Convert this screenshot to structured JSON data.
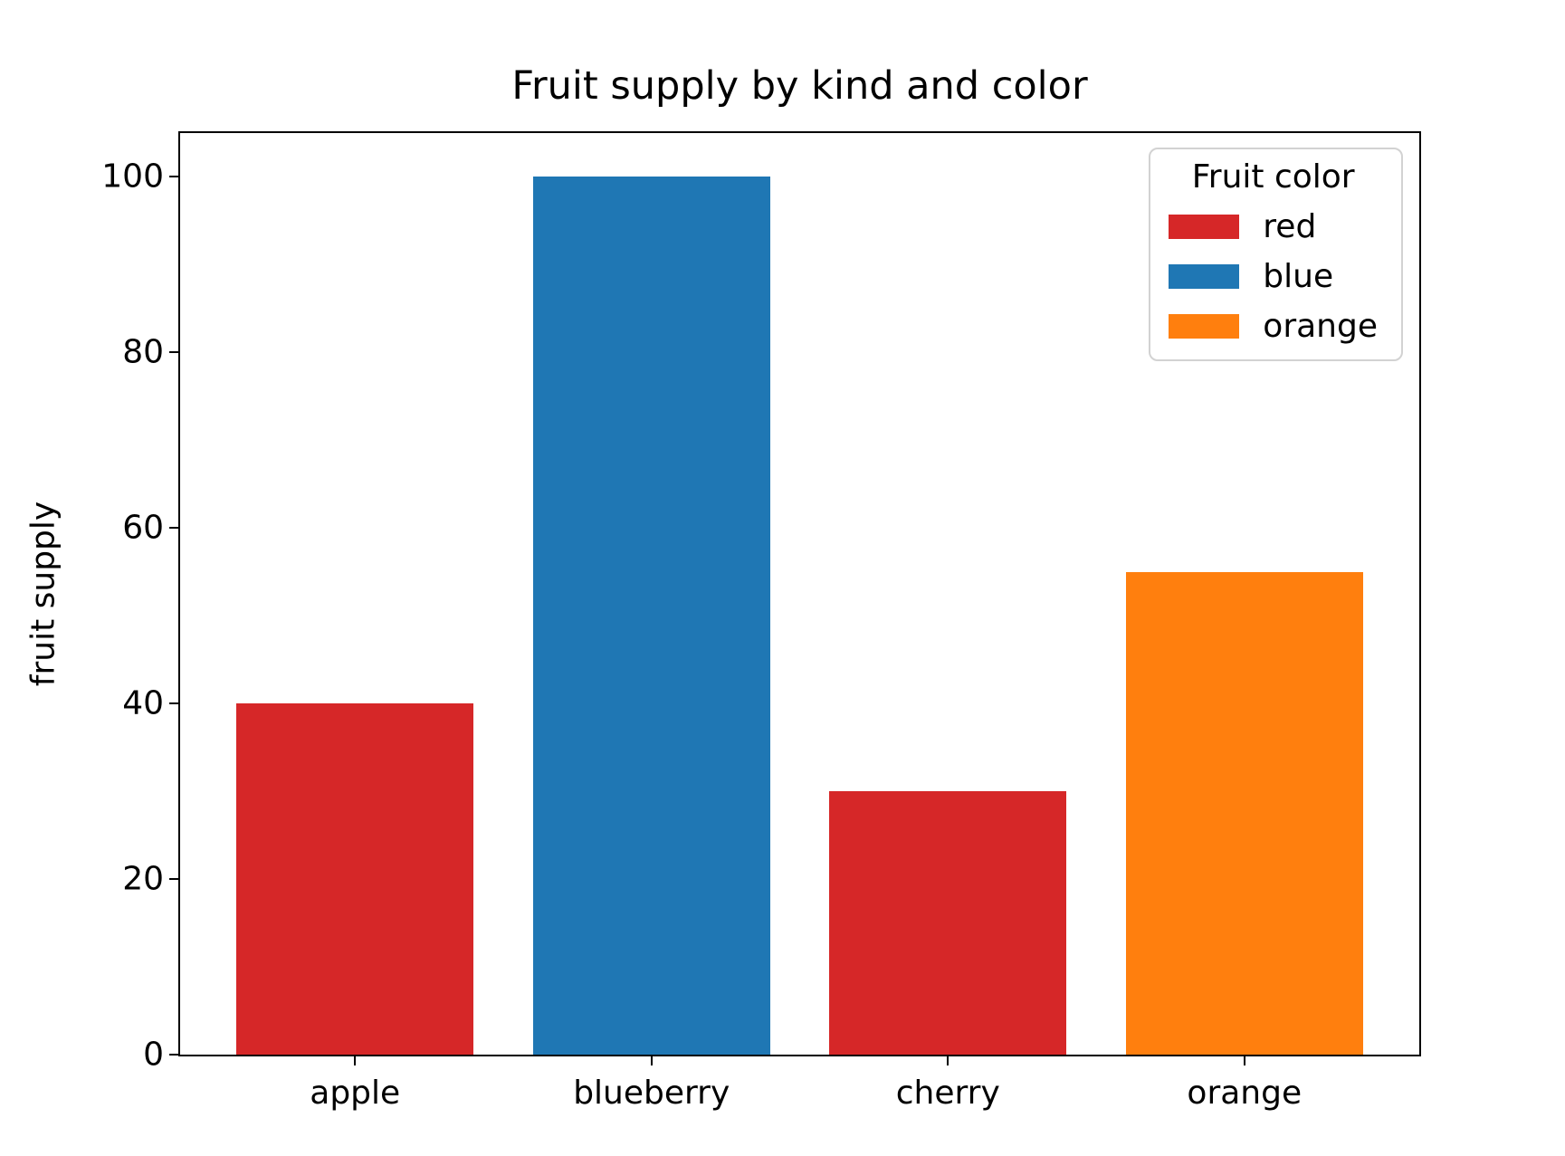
{
  "chart_data": {
    "type": "bar",
    "title": "Fruit supply by kind and color",
    "xlabel": "",
    "ylabel": "fruit supply",
    "categories": [
      "apple",
      "blueberry",
      "cherry",
      "orange"
    ],
    "values": [
      40,
      100,
      30,
      55
    ],
    "bar_colors": [
      "#d62728",
      "#1f77b4",
      "#d62728",
      "#ff7f0e"
    ],
    "ylim": [
      0,
      105
    ],
    "yticks": [
      0,
      20,
      40,
      60,
      80,
      100
    ],
    "grid": false,
    "bar_width_fraction": 0.8,
    "axis_margin_fraction": 0.05,
    "legend": {
      "title": "Fruit color",
      "position": "upper right",
      "entries": [
        {
          "label": "red",
          "color": "#d62728"
        },
        {
          "label": "blue",
          "color": "#1f77b4"
        },
        {
          "label": "orange",
          "color": "#ff7f0e"
        }
      ]
    },
    "colors": {
      "background": "#ffffff",
      "axes_edge": "#000000",
      "text": "#000000",
      "legend_border": "#d2d2d2"
    }
  }
}
